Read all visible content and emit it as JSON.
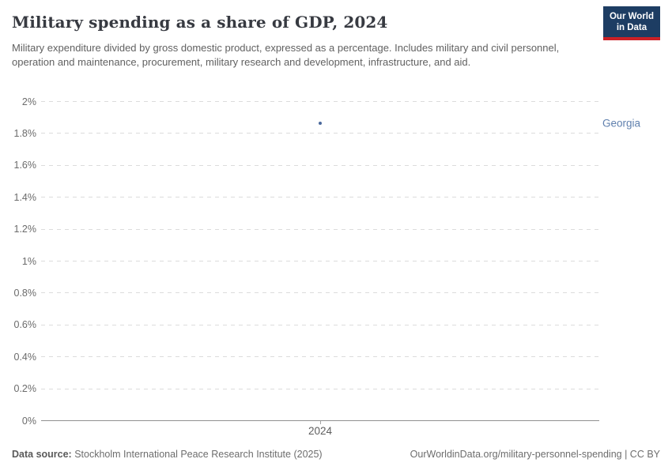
{
  "header": {
    "title": "Military spending as a share of GDP, 2024",
    "subtitle": "Military expenditure divided by gross domestic product, expressed as a percentage. Includes military and civil personnel, operation and maintenance, procurement, military research and development, infrastructure, and aid.",
    "logo": {
      "line1": "Our World",
      "line2": "in Data",
      "bg_color": "#1d3d63",
      "accent_color": "#cb2026"
    }
  },
  "chart_data": {
    "type": "scatter",
    "title": "Military spending as a share of GDP, 2024",
    "x": [
      2024
    ],
    "series": [
      {
        "name": "Georgia",
        "values": [
          1.86
        ],
        "color": "#4a699c",
        "label_color": "#6080ae"
      }
    ],
    "xlabel": "",
    "ylabel": "",
    "ylim": [
      0,
      2
    ],
    "xticks": [
      "2024"
    ],
    "yticks": [
      {
        "value": 0,
        "label": "0%"
      },
      {
        "value": 0.2,
        "label": "0.2%"
      },
      {
        "value": 0.4,
        "label": "0.4%"
      },
      {
        "value": 0.6,
        "label": "0.6%"
      },
      {
        "value": 0.8,
        "label": "0.8%"
      },
      {
        "value": 1,
        "label": "1%"
      },
      {
        "value": 1.2,
        "label": "1.2%"
      },
      {
        "value": 1.4,
        "label": "1.4%"
      },
      {
        "value": 1.6,
        "label": "1.6%"
      },
      {
        "value": 1.8,
        "label": "1.8%"
      },
      {
        "value": 2,
        "label": "2%"
      }
    ],
    "grid": "horizontal-dashed",
    "legend_position": "right-entity-label"
  },
  "footer": {
    "datasource_label": "Data source:",
    "datasource_text": "Stockholm International Peace Research Institute (2025)",
    "link_text": "OurWorldinData.org/military-personnel-spending | CC BY"
  }
}
